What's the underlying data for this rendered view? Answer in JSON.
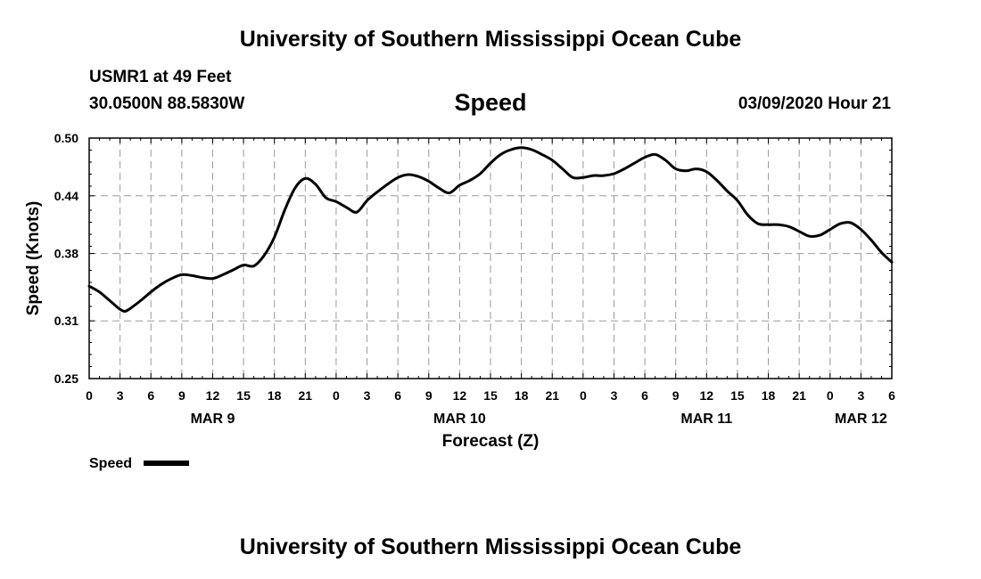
{
  "header": {
    "title": "University of Southern Mississippi Ocean Cube",
    "station": "USMR1 at 49 Feet",
    "coordinates": "30.0500N 88.5830W",
    "timestamp": "03/09/2020 Hour 21"
  },
  "footer": {
    "title": "University of Southern Mississippi Ocean Cube"
  },
  "chart_data": {
    "type": "line",
    "title": "Speed",
    "xlabel": "Forecast (Z)",
    "ylabel": "Speed (Knots)",
    "xlim": [
      0,
      78
    ],
    "ylim": [
      0.25,
      0.5
    ],
    "yticks": [
      0.25,
      0.31,
      0.38,
      0.44,
      0.5
    ],
    "ytick_labels": [
      "0.25",
      "0.31",
      "0.38",
      "0.44",
      "0.50"
    ],
    "xticks": [
      0,
      3,
      6,
      9,
      12,
      15,
      18,
      21,
      24,
      27,
      30,
      33,
      36,
      39,
      42,
      45,
      48,
      51,
      54,
      57,
      60,
      63,
      66,
      69,
      72,
      75,
      78
    ],
    "xtick_labels": [
      "0",
      "3",
      "6",
      "9",
      "12",
      "15",
      "18",
      "21",
      "0",
      "3",
      "6",
      "9",
      "12",
      "15",
      "18",
      "21",
      "0",
      "3",
      "6",
      "9",
      "12",
      "15",
      "18",
      "21",
      "0",
      "3",
      "6"
    ],
    "date_labels": [
      {
        "label": "MAR 9",
        "x": 12
      },
      {
        "label": "MAR 10",
        "x": 36
      },
      {
        "label": "MAR 11",
        "x": 60
      },
      {
        "label": "MAR 12",
        "x": 75
      }
    ],
    "grid": true,
    "legend": {
      "label": "Speed",
      "position": "bottom-left"
    },
    "series": [
      {
        "name": "Speed",
        "color": "#000000",
        "x": [
          0,
          1,
          2,
          3,
          3.5,
          4,
          5,
          6,
          7,
          8,
          9,
          10,
          11,
          12,
          13,
          14,
          15,
          16,
          17,
          18,
          19,
          20,
          21,
          22,
          23,
          24,
          25,
          26,
          27,
          28,
          29,
          30,
          31,
          32,
          33,
          34,
          35,
          36,
          37,
          38,
          39,
          40,
          41,
          42,
          43,
          44,
          45,
          46,
          47,
          48,
          49,
          50,
          51,
          52,
          53,
          54,
          55,
          56,
          57,
          58,
          59,
          60,
          61,
          62,
          63,
          64,
          65,
          66,
          67,
          68,
          69,
          70,
          71,
          72,
          73,
          74,
          75,
          76,
          77,
          78
        ],
        "values": [
          0.346,
          0.34,
          0.331,
          0.322,
          0.32,
          0.323,
          0.331,
          0.34,
          0.348,
          0.354,
          0.358,
          0.357,
          0.355,
          0.354,
          0.358,
          0.363,
          0.368,
          0.367,
          0.378,
          0.397,
          0.425,
          0.448,
          0.458,
          0.452,
          0.438,
          0.434,
          0.428,
          0.423,
          0.435,
          0.444,
          0.452,
          0.459,
          0.462,
          0.46,
          0.455,
          0.448,
          0.443,
          0.451,
          0.456,
          0.463,
          0.474,
          0.483,
          0.488,
          0.49,
          0.488,
          0.483,
          0.477,
          0.468,
          0.459,
          0.459,
          0.461,
          0.461,
          0.463,
          0.468,
          0.474,
          0.48,
          0.483,
          0.477,
          0.468,
          0.466,
          0.468,
          0.465,
          0.456,
          0.445,
          0.435,
          0.42,
          0.411,
          0.41,
          0.41,
          0.408,
          0.403,
          0.398,
          0.399,
          0.405,
          0.411,
          0.412,
          0.405,
          0.394,
          0.381,
          0.371
        ]
      }
    ]
  }
}
